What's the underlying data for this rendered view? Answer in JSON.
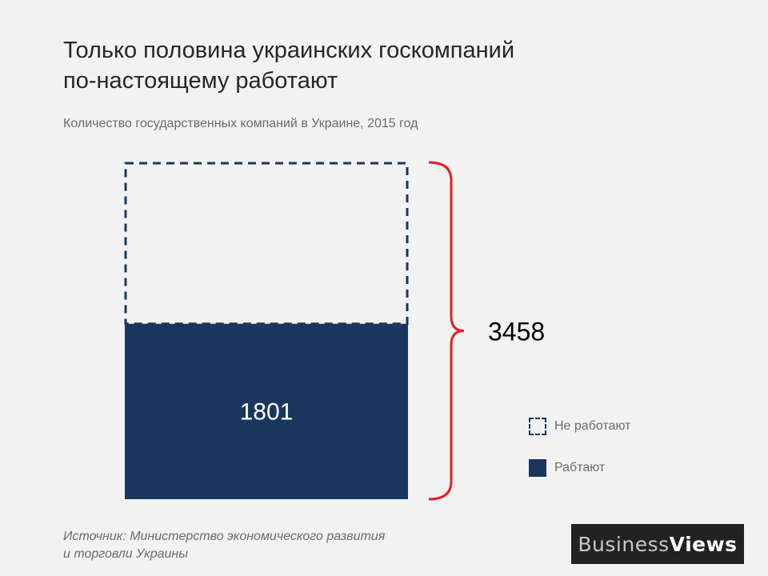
{
  "header": {
    "title_line1": "Только половина украинских госкомпаний",
    "title_line2": "по-настоящему работают",
    "subtitle": "Количество государственных компаний  в Украине, 2015 год"
  },
  "chart_data": {
    "type": "bar",
    "stacked": true,
    "categories": [
      ""
    ],
    "total": 3458,
    "total_label": "3458",
    "series": [
      {
        "name": "Рабтают",
        "values": [
          1801
        ],
        "label": "1801",
        "style": "solid",
        "color": "#1b365d"
      },
      {
        "name": "Не работают",
        "values": [
          1657
        ],
        "style": "dashed-outline",
        "color": "#1b365d"
      }
    ],
    "ylim": [
      0,
      3458
    ],
    "legend": "right",
    "grid": false,
    "brace_color": "#e31e24"
  },
  "legend": {
    "items": [
      {
        "label": "Не работают",
        "style": "dashed"
      },
      {
        "label": "Рабтают",
        "style": "solid"
      }
    ]
  },
  "footer": {
    "source_line1": "Источник: Министерство экономического развития",
    "source_line2": "и торговли Украины",
    "logo_part1": "Business",
    "logo_part2": "Views"
  }
}
